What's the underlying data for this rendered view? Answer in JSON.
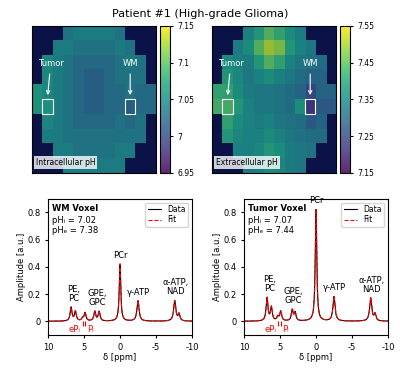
{
  "title": "Patient #1 (High-grade Glioma)",
  "chart_data": [
    {
      "type": "heatmap",
      "label": "Intracellular pH",
      "tick_labels": false,
      "colorbar": {
        "range": [
          6.95,
          7.15
        ],
        "ticks": [
          6.95,
          7,
          7.05,
          7.1,
          7.15
        ]
      },
      "annotations": [
        {
          "text": "Tumor"
        },
        {
          "text": "WM"
        }
      ],
      "cells": [
        [
          null,
          null,
          null,
          7.04,
          7.05,
          7.05,
          7.05,
          7.05,
          7.04,
          null,
          null,
          null
        ],
        [
          null,
          null,
          7.05,
          7.05,
          7.04,
          7.04,
          7.04,
          7.04,
          7.05,
          7.04,
          null,
          null
        ],
        [
          null,
          7.06,
          7.05,
          7.04,
          7.03,
          7.03,
          7.03,
          7.03,
          7.04,
          7.05,
          7.04,
          null
        ],
        [
          null,
          7.06,
          7.05,
          7.04,
          7.03,
          7.02,
          7.02,
          7.03,
          7.04,
          7.04,
          7.04,
          null
        ],
        [
          7.07,
          7.06,
          7.05,
          7.04,
          7.03,
          7.02,
          7.02,
          7.03,
          7.03,
          7.04,
          7.03,
          7.03
        ],
        [
          7.07,
          7.07,
          7.05,
          7.04,
          7.03,
          7.02,
          7.02,
          7.03,
          7.03,
          7.02,
          7.03,
          7.03
        ],
        [
          null,
          7.06,
          7.05,
          7.04,
          7.03,
          7.03,
          7.03,
          7.03,
          7.04,
          7.03,
          7.04,
          null
        ],
        [
          null,
          7.05,
          7.05,
          7.04,
          7.04,
          7.04,
          7.04,
          7.04,
          7.04,
          7.04,
          7.04,
          null
        ],
        [
          null,
          null,
          7.05,
          7.05,
          7.04,
          7.04,
          7.04,
          7.04,
          7.05,
          7.05,
          null,
          null
        ],
        [
          null,
          null,
          null,
          7.05,
          7.05,
          7.05,
          7.05,
          7.05,
          7.05,
          null,
          null,
          null
        ]
      ]
    },
    {
      "type": "heatmap",
      "label": "Extracellular pH",
      "tick_labels": false,
      "colorbar": {
        "range": [
          7.15,
          7.55
        ],
        "ticks": [
          7.15,
          7.25,
          7.35,
          7.45,
          7.55
        ]
      },
      "annotations": [
        {
          "text": "Tumor"
        },
        {
          "text": "WM"
        }
      ],
      "cells": [
        [
          null,
          null,
          null,
          7.36,
          7.4,
          7.45,
          7.42,
          7.38,
          7.35,
          null,
          null,
          null
        ],
        [
          null,
          null,
          7.35,
          7.38,
          7.45,
          7.5,
          7.48,
          7.4,
          7.36,
          7.34,
          null,
          null
        ],
        [
          null,
          7.38,
          7.36,
          7.35,
          7.4,
          7.45,
          7.42,
          7.36,
          7.34,
          7.33,
          7.32,
          null
        ],
        [
          null,
          7.4,
          7.37,
          7.34,
          7.36,
          7.38,
          7.36,
          7.34,
          7.32,
          7.3,
          7.3,
          null
        ],
        [
          7.42,
          7.42,
          7.38,
          7.35,
          7.34,
          7.34,
          7.33,
          7.32,
          7.3,
          7.25,
          7.3,
          7.3
        ],
        [
          7.44,
          7.44,
          7.4,
          7.36,
          7.34,
          7.34,
          7.33,
          7.32,
          7.38,
          7.22,
          7.28,
          7.28
        ],
        [
          null,
          7.42,
          7.38,
          7.36,
          7.35,
          7.36,
          7.34,
          7.33,
          7.32,
          7.28,
          7.3,
          null
        ],
        [
          null,
          7.4,
          7.37,
          7.36,
          7.36,
          7.38,
          7.36,
          7.34,
          7.33,
          7.32,
          7.32,
          null
        ],
        [
          null,
          null,
          7.36,
          7.36,
          7.37,
          7.4,
          7.38,
          7.35,
          7.34,
          7.33,
          null,
          null
        ],
        [
          null,
          null,
          null,
          7.35,
          7.36,
          7.38,
          7.37,
          7.35,
          7.34,
          null,
          null,
          null
        ]
      ]
    },
    {
      "type": "line",
      "xlabel": "δ [ppm]",
      "ylabel": "Amplitude [a.u.]",
      "xlim": [
        10,
        -10
      ],
      "ylim": [
        -0.1,
        0.9
      ],
      "xticks": [
        10,
        5,
        0,
        -5,
        -10
      ],
      "yticks": [
        0,
        0.2,
        0.4,
        0.6,
        0.8
      ],
      "legend": "upper right",
      "series": [
        {
          "name": "Data",
          "color": "#000000",
          "line_style": "solid"
        },
        {
          "name": "Fit",
          "color": "#ff0000",
          "line_style": "dashed"
        }
      ],
      "text_box": [
        "WM Voxel",
        "pHᵢ = 7.02",
        "pHₑ = 7.38"
      ],
      "peaks": [
        {
          "ppm": 6.8,
          "amplitude": 0.1,
          "fwhm": 0.3
        },
        {
          "ppm": 6.2,
          "amplitude": 0.07,
          "fwhm": 0.3
        },
        {
          "ppm": 5.2,
          "amplitude": 0.02,
          "fwhm": 0.3
        },
        {
          "ppm": 4.85,
          "amplitude": 0.06,
          "fwhm": 0.3
        },
        {
          "ppm": 3.5,
          "amplitude": 0.07,
          "fwhm": 0.3
        },
        {
          "ppm": 2.9,
          "amplitude": 0.07,
          "fwhm": 0.3
        },
        {
          "ppm": 0,
          "amplitude": 0.42,
          "fwhm": 0.25
        },
        {
          "ppm": -2.5,
          "amplitude": 0.15,
          "fwhm": 0.35
        },
        {
          "ppm": -7.6,
          "amplitude": 0.15,
          "fwhm": 0.35
        },
        {
          "ppm": -8.2,
          "amplitude": 0.05,
          "fwhm": 0.3
        }
      ],
      "annotations": [
        {
          "text": "PE,\nPC",
          "ppm": 6.5
        },
        {
          "text": "GPE,\nGPC",
          "ppm": 3.2
        },
        {
          "text": "PCr",
          "ppm": 0
        },
        {
          "text": "γ-ATP",
          "ppm": -2.5
        },
        {
          "text": "α-ATP,\nNAD",
          "ppm": -7.7
        },
        {
          "text": "ePᵢ",
          "ppm": 5.2,
          "color": "#ff0000"
        },
        {
          "text": "Pᵢ",
          "ppm": 4.85,
          "color": "#ff0000"
        }
      ]
    },
    {
      "type": "line",
      "xlabel": "δ [ppm]",
      "ylabel": "Amplitude [a.u.]",
      "xlim": [
        10,
        -10
      ],
      "ylim": [
        -0.1,
        0.9
      ],
      "xticks": [
        10,
        5,
        0,
        -5,
        -10
      ],
      "yticks": [
        0,
        0.2,
        0.4,
        0.6,
        0.8
      ],
      "legend": "upper right",
      "series": [
        {
          "name": "Data",
          "color": "#000000",
          "line_style": "solid"
        },
        {
          "name": "Fit",
          "color": "#ff0000",
          "line_style": "dashed"
        }
      ],
      "text_box": [
        "Tumor Voxel",
        "pHᵢ = 7.07",
        "pHₑ = 7.44"
      ],
      "peaks": [
        {
          "ppm": 6.8,
          "amplitude": 0.17,
          "fwhm": 0.3
        },
        {
          "ppm": 6.2,
          "amplitude": 0.1,
          "fwhm": 0.3
        },
        {
          "ppm": 5.3,
          "amplitude": 0.03,
          "fwhm": 0.3
        },
        {
          "ppm": 4.9,
          "amplitude": 0.07,
          "fwhm": 0.3
        },
        {
          "ppm": 3.3,
          "amplitude": 0.08,
          "fwhm": 0.3
        },
        {
          "ppm": 2.9,
          "amplitude": 0.06,
          "fwhm": 0.3
        },
        {
          "ppm": 0,
          "amplitude": 0.82,
          "fwhm": 0.25
        },
        {
          "ppm": -2.5,
          "amplitude": 0.18,
          "fwhm": 0.35
        },
        {
          "ppm": -7.6,
          "amplitude": 0.17,
          "fwhm": 0.35
        },
        {
          "ppm": -8.2,
          "amplitude": 0.05,
          "fwhm": 0.3
        }
      ],
      "annotations": [
        {
          "text": "PE,\nPC",
          "ppm": 6.5
        },
        {
          "text": "GPE,\nGPC",
          "ppm": 3.2
        },
        {
          "text": "PCr",
          "ppm": 0
        },
        {
          "text": "γ-ATP",
          "ppm": -2.5
        },
        {
          "text": "α-ATP,\nNAD",
          "ppm": -7.7
        },
        {
          "text": "ePᵢ",
          "ppm": 5.3,
          "color": "#ff0000"
        },
        {
          "text": "Pᵢ",
          "ppm": 4.9,
          "color": "#ff0000"
        }
      ]
    }
  ]
}
